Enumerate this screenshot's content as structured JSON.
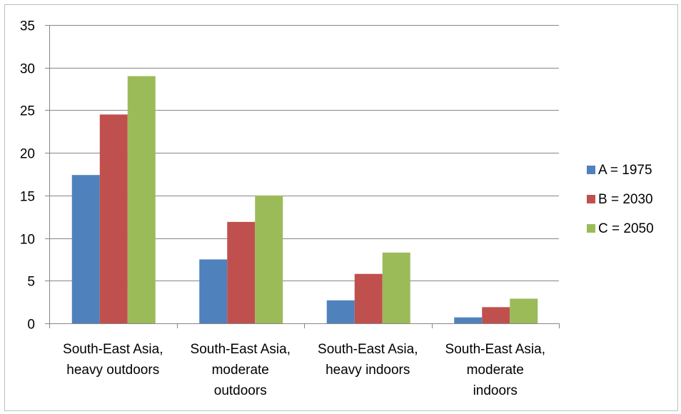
{
  "chart_data": {
    "type": "bar",
    "title": "",
    "xlabel": "",
    "ylabel": "",
    "ylim": [
      0,
      35
    ],
    "y_ticks": [
      0,
      5,
      10,
      15,
      20,
      25,
      30,
      35
    ],
    "y_tick_labels": [
      "0",
      "5",
      "10",
      "15",
      "20",
      "25",
      "30",
      "35"
    ],
    "grid": true,
    "legend_position": "right",
    "categories": [
      [
        "South-East Asia,",
        "heavy outdoors"
      ],
      [
        "South-East Asia,",
        "moderate",
        "outdoors"
      ],
      [
        "South-East Asia,",
        "heavy indoors"
      ],
      [
        "South-East Asia,",
        "moderate",
        "indoors"
      ]
    ],
    "series": [
      {
        "name": "A = 1975",
        "color": "#4f81bd",
        "values": [
          17.4,
          7.5,
          2.7,
          0.7
        ]
      },
      {
        "name": "B = 2030",
        "color": "#c0504d",
        "values": [
          24.5,
          11.9,
          5.8,
          1.9
        ]
      },
      {
        "name": "C = 2050",
        "color": "#9bbb59",
        "values": [
          29.0,
          15.0,
          8.3,
          2.9
        ]
      }
    ]
  }
}
